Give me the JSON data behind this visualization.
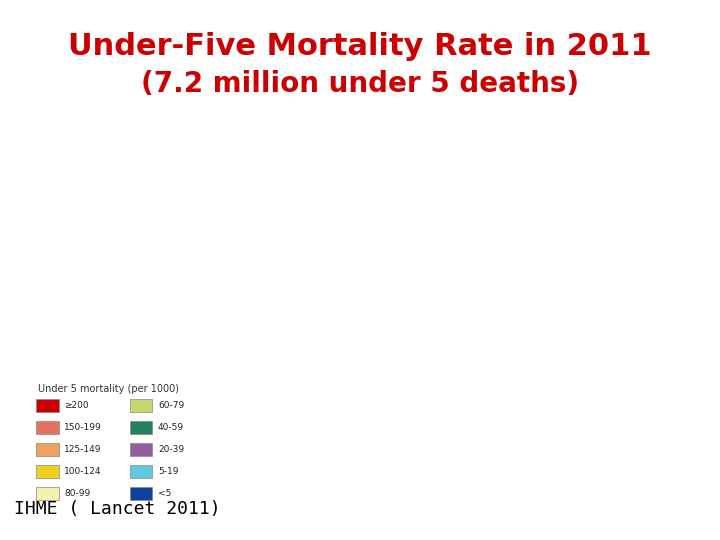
{
  "title_line1": "Under-Five Mortality Rate in 2011",
  "title_line2": "(7.2 million under 5 deaths)",
  "title_color": "#cc0000",
  "title_fontsize": 22,
  "subtitle_fontsize": 20,
  "source_text": "IHME ( Lancet 2011)",
  "source_fontsize": 13,
  "background_color": "#ffffff",
  "legend_title": "Under 5 mortality (per 1000)",
  "legend_items": [
    {
      "label": "≥200",
      "color": "#cc0000"
    },
    {
      "label": "150-199",
      "color": "#e87060"
    },
    {
      "label": "125-149",
      "color": "#f0a060"
    },
    {
      "label": "100-124",
      "color": "#f0d020"
    },
    {
      "label": "80-99",
      "color": "#f5f0b0"
    },
    {
      "label": "60-79",
      "color": "#c8d870"
    },
    {
      "label": "40-59",
      "color": "#208060"
    },
    {
      "label": "20-39",
      "color": "#9060a0"
    },
    {
      "label": "5-19",
      "color": "#60c8e0"
    },
    {
      "label": "<5",
      "color": "#1040a0"
    }
  ]
}
